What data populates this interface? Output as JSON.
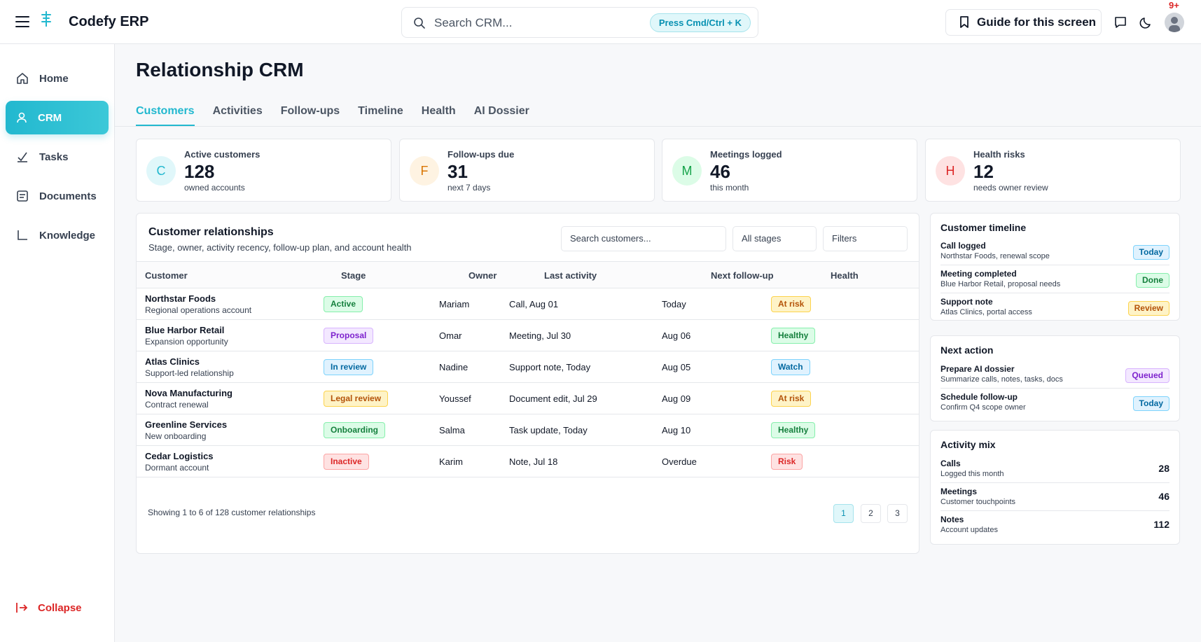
{
  "app": {
    "title": "Codefy ERP"
  },
  "search": {
    "placeholder": "Search CRM...",
    "shortcut": "Press Cmd/Ctrl + K"
  },
  "header": {
    "guide_label": "Guide for this screen",
    "notification_count": "9+"
  },
  "sidebar": {
    "items": [
      {
        "label": "Home",
        "icon": "home-icon"
      },
      {
        "label": "CRM",
        "icon": "user-icon",
        "active": true
      },
      {
        "label": "Tasks",
        "icon": "check-icon"
      },
      {
        "label": "Documents",
        "icon": "document-icon"
      },
      {
        "label": "Knowledge",
        "icon": "chart-axis-icon"
      }
    ],
    "collapse_label": "Collapse"
  },
  "page": {
    "title": "Relationship CRM"
  },
  "tabs": [
    "Customers",
    "Activities",
    "Follow-ups",
    "Timeline",
    "Health",
    "AI Dossier"
  ],
  "kpis": [
    {
      "initial": "C",
      "label": "Active customers",
      "value": "128",
      "sub": "owned accounts",
      "bg": "#e0f7fa",
      "fg": "#22b8cf"
    },
    {
      "initial": "F",
      "label": "Follow-ups due",
      "value": "31",
      "sub": "next 7 days",
      "bg": "#fef3e2",
      "fg": "#d97706"
    },
    {
      "initial": "M",
      "label": "Meetings logged",
      "value": "46",
      "sub": "this month",
      "bg": "#dcfce7",
      "fg": "#16a34a"
    },
    {
      "initial": "H",
      "label": "Health risks",
      "value": "12",
      "sub": "needs owner review",
      "bg": "#fee2e2",
      "fg": "#dc2626"
    }
  ],
  "table": {
    "title": "Customer relationships",
    "subtitle": "Stage, owner, activity recency, follow-up plan, and account health",
    "search_placeholder": "Search customers...",
    "stage_filter": "All stages",
    "filters_label": "Filters",
    "columns": [
      "Customer",
      "Stage",
      "Owner",
      "Last activity",
      "Next follow-up",
      "Health"
    ],
    "rows": [
      {
        "name": "Northstar Foods",
        "desc": "Regional operations account",
        "stage": "Active",
        "owner": "Mariam",
        "last": "Call, Aug 01",
        "next": "Today",
        "health": "At risk"
      },
      {
        "name": "Blue Harbor Retail",
        "desc": "Expansion opportunity",
        "stage": "Proposal",
        "owner": "Omar",
        "last": "Meeting, Jul 30",
        "next": "Aug 06",
        "health": "Healthy"
      },
      {
        "name": "Atlas Clinics",
        "desc": "Support-led relationship",
        "stage": "In review",
        "owner": "Nadine",
        "last": "Support note, Today",
        "next": "Aug 05",
        "health": "Watch"
      },
      {
        "name": "Nova Manufacturing",
        "desc": "Contract renewal",
        "stage": "Legal review",
        "owner": "Youssef",
        "last": "Document edit, Jul 29",
        "next": "Aug 09",
        "health": "At risk"
      },
      {
        "name": "Greenline Services",
        "desc": "New onboarding",
        "stage": "Onboarding",
        "owner": "Salma",
        "last": "Task update, Today",
        "next": "Aug 10",
        "health": "Healthy"
      },
      {
        "name": "Cedar Logistics",
        "desc": "Dormant account",
        "stage": "Inactive",
        "owner": "Karim",
        "last": "Note, Jul 18",
        "next": "Overdue",
        "health": "Risk"
      }
    ],
    "footer": "Showing 1 to 6 of 128 customer relationships",
    "pages": [
      "1",
      "2",
      "3"
    ]
  },
  "timeline": {
    "title": "Customer timeline",
    "items": [
      {
        "title": "Call logged",
        "desc": "Northstar Foods, renewal scope",
        "badge": "Today"
      },
      {
        "title": "Meeting completed",
        "desc": "Blue Harbor Retail, proposal needs",
        "badge": "Done"
      },
      {
        "title": "Support note",
        "desc": "Atlas Clinics, portal access",
        "badge": "Review"
      }
    ]
  },
  "next_action": {
    "title": "Next action",
    "items": [
      {
        "title": "Prepare AI dossier",
        "desc": "Summarize calls, notes, tasks, docs",
        "badge": "Queued"
      },
      {
        "title": "Schedule follow-up",
        "desc": "Confirm Q4 scope owner",
        "badge": "Today"
      }
    ]
  },
  "activity_mix": {
    "title": "Activity mix",
    "items": [
      {
        "title": "Calls",
        "desc": "Logged this month",
        "value": "28"
      },
      {
        "title": "Meetings",
        "desc": "Customer touchpoints",
        "value": "46"
      },
      {
        "title": "Notes",
        "desc": "Account updates",
        "value": "112"
      }
    ]
  },
  "colors": {
    "accent": "#22b8cf",
    "badge_styles": {
      "Active": [
        "#dcfce7",
        "#86efac",
        "#15803d"
      ],
      "Proposal": [
        "#f3e8ff",
        "#d8b4fe",
        "#7e22ce"
      ],
      "In review": [
        "#e0f2fe",
        "#7dd3fc",
        "#0369a1"
      ],
      "Legal review": [
        "#fef3c7",
        "#fcd34d",
        "#b45309"
      ],
      "Onboarding": [
        "#dcfce7",
        "#86efac",
        "#15803d"
      ],
      "Inactive": [
        "#fee2e2",
        "#fca5a5",
        "#dc2626"
      ],
      "At risk": [
        "#fef3c7",
        "#fcd34d",
        "#b45309"
      ],
      "Healthy": [
        "#dcfce7",
        "#86efac",
        "#15803d"
      ],
      "Watch": [
        "#e0f2fe",
        "#7dd3fc",
        "#0369a1"
      ],
      "Risk": [
        "#fee2e2",
        "#fca5a5",
        "#dc2626"
      ],
      "Today": [
        "#e0f2fe",
        "#7dd3fc",
        "#0369a1"
      ],
      "Done": [
        "#dcfce7",
        "#86efac",
        "#15803d"
      ],
      "Review": [
        "#fef3c7",
        "#fcd34d",
        "#b45309"
      ],
      "Queued": [
        "#f3e8ff",
        "#d8b4fe",
        "#7e22ce"
      ]
    }
  }
}
